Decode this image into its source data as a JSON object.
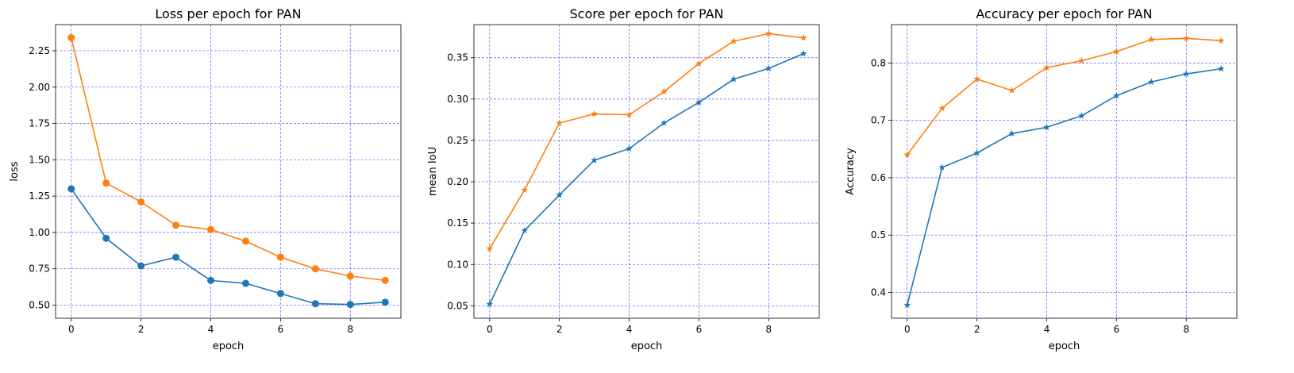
{
  "chart_data": [
    {
      "type": "line",
      "title": "Loss per epoch for PAN",
      "xlabel": "epoch",
      "ylabel": "loss",
      "xlim": [
        -0.45,
        9.45
      ],
      "ylim": [
        0.41,
        2.43
      ],
      "xticks": [
        0,
        2,
        4,
        6,
        8
      ],
      "xtick_labels": [
        "0",
        "2",
        "4",
        "6",
        "8"
      ],
      "yticks": [
        0.5,
        0.75,
        1.0,
        1.25,
        1.5,
        1.75,
        2.0,
        2.25
      ],
      "ytick_labels": [
        "0.50",
        "0.75",
        "1.00",
        "1.25",
        "1.50",
        "1.75",
        "2.00",
        "2.25"
      ],
      "grid": true,
      "x": [
        0,
        1,
        2,
        3,
        4,
        5,
        6,
        7,
        8,
        9
      ],
      "series": [
        {
          "color": "#1f77b4",
          "marker": "circle",
          "values": [
            1.3,
            0.96,
            0.77,
            0.83,
            0.67,
            0.65,
            0.58,
            0.51,
            0.505,
            0.52
          ]
        },
        {
          "color": "#ff7f0e",
          "marker": "circle",
          "values": [
            2.34,
            1.34,
            1.21,
            1.05,
            1.02,
            0.94,
            0.83,
            0.75,
            0.7,
            0.67
          ]
        }
      ]
    },
    {
      "type": "line",
      "title": "Score per epoch for PAN",
      "xlabel": "epoch",
      "ylabel": "mean IoU",
      "xlim": [
        -0.45,
        9.45
      ],
      "ylim": [
        0.035,
        0.39
      ],
      "xticks": [
        0,
        2,
        4,
        6,
        8
      ],
      "xtick_labels": [
        "0",
        "2",
        "4",
        "6",
        "8"
      ],
      "yticks": [
        0.05,
        0.1,
        0.15,
        0.2,
        0.25,
        0.3,
        0.35
      ],
      "ytick_labels": [
        "0.05",
        "0.10",
        "0.15",
        "0.20",
        "0.25",
        "0.30",
        "0.35"
      ],
      "grid": true,
      "x": [
        0,
        1,
        2,
        3,
        4,
        5,
        6,
        7,
        8,
        9
      ],
      "series": [
        {
          "color": "#1f77b4",
          "marker": "star",
          "values": [
            0.052,
            0.141,
            0.184,
            0.226,
            0.24,
            0.271,
            0.296,
            0.324,
            0.337,
            0.355
          ]
        },
        {
          "color": "#ff7f0e",
          "marker": "star",
          "values": [
            0.119,
            0.19,
            0.271,
            0.282,
            0.281,
            0.309,
            0.343,
            0.37,
            0.379,
            0.374
          ]
        }
      ]
    },
    {
      "type": "line",
      "title": "Accuracy per epoch for PAN",
      "xlabel": "epoch",
      "ylabel": "Accuracy",
      "xlim": [
        -0.45,
        9.45
      ],
      "ylim": [
        0.355,
        0.867
      ],
      "xticks": [
        0,
        2,
        4,
        6,
        8
      ],
      "xtick_labels": [
        "0",
        "2",
        "4",
        "6",
        "8"
      ],
      "yticks": [
        0.4,
        0.5,
        0.6,
        0.7,
        0.8
      ],
      "ytick_labels": [
        "0.4",
        "0.5",
        "0.6",
        "0.7",
        "0.8"
      ],
      "grid": true,
      "x": [
        0,
        1,
        2,
        3,
        4,
        5,
        6,
        7,
        8,
        9
      ],
      "series": [
        {
          "color": "#1f77b4",
          "marker": "star",
          "values": [
            0.378,
            0.618,
            0.643,
            0.677,
            0.688,
            0.708,
            0.743,
            0.767,
            0.781,
            0.79
          ]
        },
        {
          "color": "#ff7f0e",
          "marker": "star",
          "values": [
            0.64,
            0.721,
            0.772,
            0.752,
            0.792,
            0.804,
            0.82,
            0.841,
            0.843,
            0.839
          ]
        }
      ]
    }
  ]
}
